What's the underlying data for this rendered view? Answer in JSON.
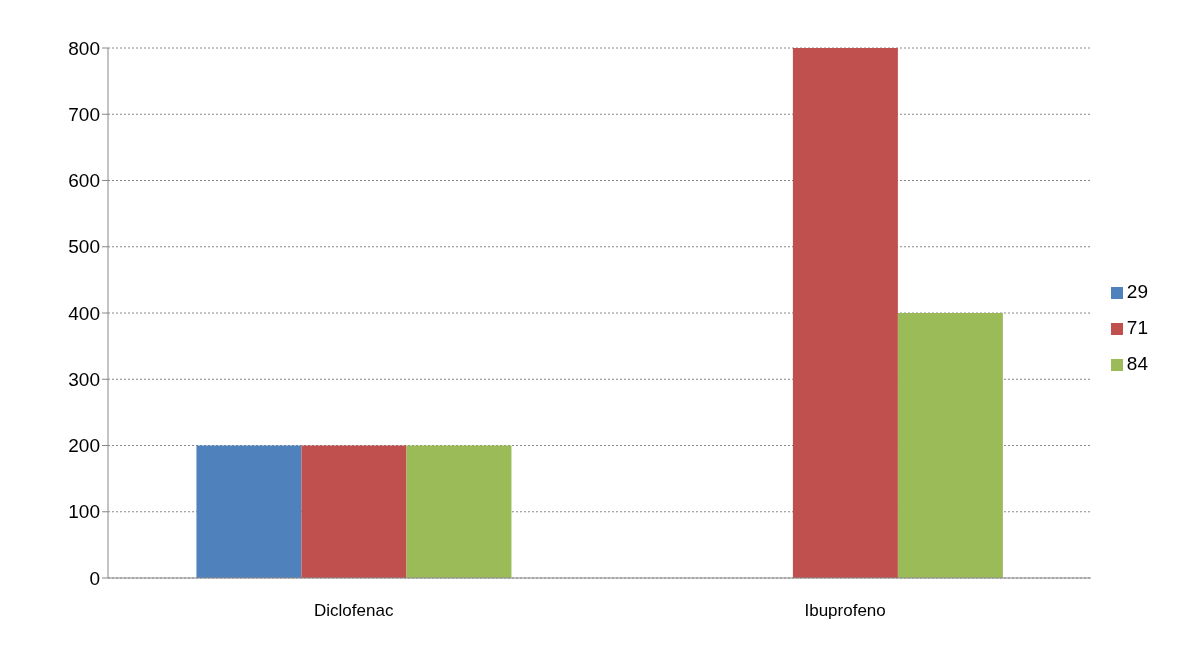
{
  "chart_data": {
    "type": "bar",
    "categories": [
      "Diclofenac",
      "Ibuprofeno"
    ],
    "series": [
      {
        "name": "29",
        "color": "#4f81bd",
        "values": [
          200,
          null
        ]
      },
      {
        "name": "71",
        "color": "#c0504d",
        "values": [
          200,
          800
        ]
      },
      {
        "name": "84",
        "color": "#9bbb59",
        "values": [
          200,
          400
        ]
      }
    ],
    "ylim": [
      0,
      800
    ],
    "yticks": [
      0,
      100,
      200,
      300,
      400,
      500,
      600,
      700,
      800
    ],
    "grid": "y",
    "legend": "right"
  }
}
